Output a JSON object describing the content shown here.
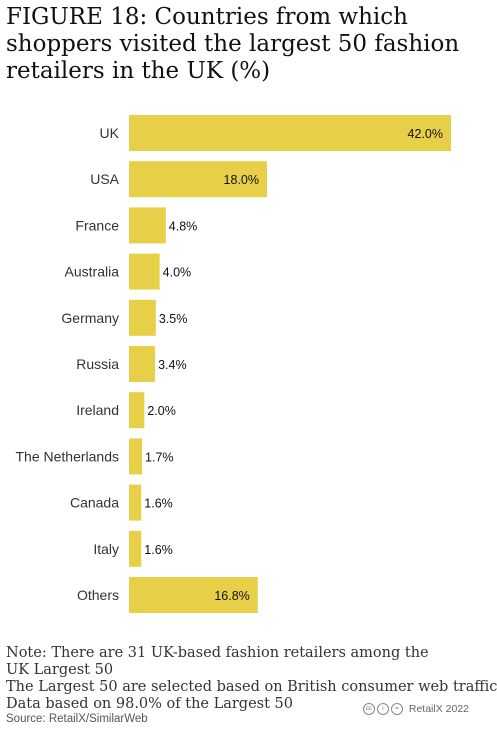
{
  "title": "FIGURE 18: Countries from which shoppers visited the largest 50 fashion retailers in the UK (%)",
  "chart_data": {
    "type": "bar",
    "orientation": "horizontal",
    "categories": [
      "UK",
      "USA",
      "France",
      "Australia",
      "Germany",
      "Russia",
      "Ireland",
      "The Netherlands",
      "Canada",
      "Italy",
      "Others"
    ],
    "values": [
      42.0,
      18.0,
      4.8,
      4.0,
      3.5,
      3.4,
      2.0,
      1.7,
      1.6,
      1.6,
      16.8
    ],
    "data_labels": [
      "42.0%",
      "18.0%",
      "4.8%",
      "4.0%",
      "3.5%",
      "3.4%",
      "2.0%",
      "1.7%",
      "1.6%",
      "1.6%",
      "16.8%"
    ],
    "xlim": [
      0,
      42
    ],
    "grid": false,
    "legend": "none",
    "bar_color": "#E8CF48"
  },
  "notes": [
    "Note: There are 31 UK-based fashion retailers among the",
    "UK Largest 50",
    "The Largest 50 are selected based on British consumer web traffic",
    "Data based on 98.0% of the Largest 50"
  ],
  "source": "Source: RetailX/SimilarWeb",
  "copyright": "RetailX 2022"
}
